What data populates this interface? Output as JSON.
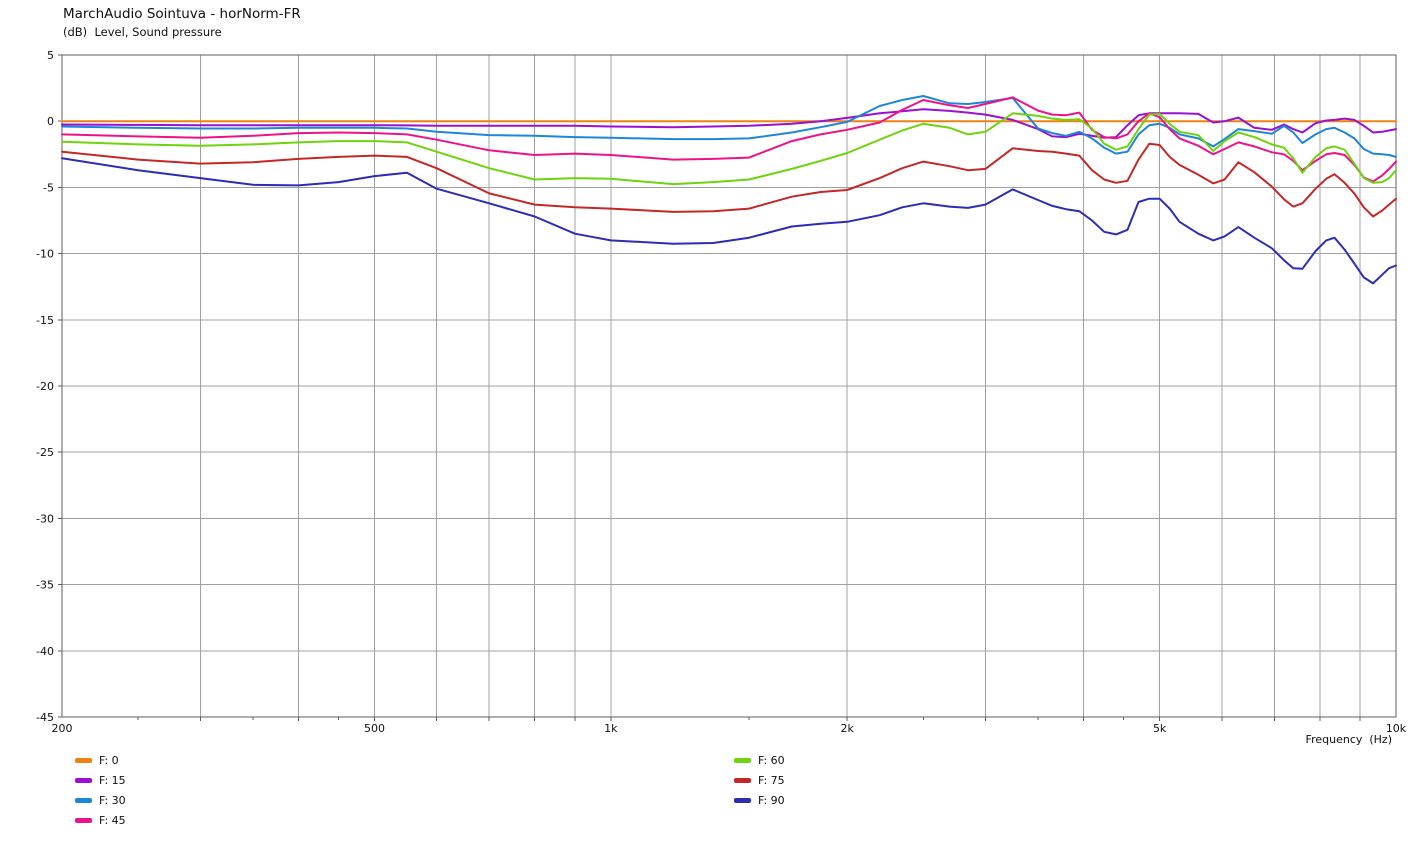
{
  "header": {
    "title": "MarchAudio Sointuva - horNorm-FR",
    "subtitle": "(dB)  Level, Sound pressure"
  },
  "chart_data": {
    "type": "line",
    "title": "MarchAudio Sointuva - horNorm-FR",
    "subtitle": "(dB)  Level, Sound pressure",
    "xlabel": "Frequency  (Hz)",
    "x_scale": "log",
    "xlim": [
      200,
      10000
    ],
    "ylim": [
      -45,
      5
    ],
    "grid": true,
    "legend_position": "bottom",
    "background": "#ffffff",
    "grid_color": "#a0a0a0",
    "frame_color": "#5f5f5f",
    "y_ticks": [
      5,
      0,
      -5,
      -10,
      -15,
      -20,
      -25,
      -30,
      -35,
      -40,
      -45
    ],
    "x_tick_labels": [
      {
        "f": 200,
        "label": "200"
      },
      {
        "f": 500,
        "label": "500"
      },
      {
        "f": 1000,
        "label": "1k"
      },
      {
        "f": 2000,
        "label": "2k"
      },
      {
        "f": 5000,
        "label": "5k"
      },
      {
        "f": 10000,
        "label": "10k"
      }
    ],
    "x_gridlines": [
      300,
      400,
      500,
      600,
      700,
      800,
      900,
      1000,
      2000,
      3000,
      4000,
      5000,
      6000,
      7000,
      8000,
      9000
    ],
    "x_minor_ticks": [
      250,
      350,
      450,
      1500,
      2500,
      3500,
      4500
    ],
    "frequencies": [
      200,
      250,
      300,
      350,
      400,
      450,
      500,
      550,
      600,
      700,
      800,
      900,
      1000,
      1200,
      1350,
      1500,
      1700,
      1850,
      2000,
      2200,
      2350,
      2500,
      2700,
      2850,
      3000,
      3250,
      3500,
      3650,
      3800,
      3950,
      4100,
      4250,
      4400,
      4550,
      4700,
      4850,
      5000,
      5150,
      5300,
      5600,
      5850,
      6050,
      6300,
      6600,
      6950,
      7200,
      7400,
      7600,
      7900,
      8150,
      8350,
      8600,
      8850,
      9100,
      9350,
      9600,
      9800,
      10000
    ],
    "series": [
      {
        "name": "F: 0",
        "color": "#EE8211",
        "values": [
          0,
          0,
          0,
          0,
          0,
          0,
          0,
          0,
          0,
          0,
          0,
          0,
          0,
          0,
          0,
          0,
          0,
          0,
          0,
          0,
          0,
          0,
          0,
          0,
          0,
          0,
          0,
          0,
          0,
          0,
          0,
          0,
          0,
          0,
          0,
          0,
          0,
          0,
          0,
          0,
          0,
          0,
          0,
          0,
          0,
          0,
          0,
          0,
          0,
          0,
          0,
          0,
          0,
          0,
          0,
          0,
          0,
          0
        ]
      },
      {
        "name": "F: 15",
        "color": "#9A10D2",
        "values": [
          -0.25,
          -0.28,
          -0.3,
          -0.3,
          -0.3,
          -0.3,
          -0.3,
          -0.32,
          -0.35,
          -0.35,
          -0.35,
          -0.35,
          -0.4,
          -0.45,
          -0.4,
          -0.35,
          -0.2,
          0,
          0.25,
          0.6,
          0.75,
          0.9,
          0.78,
          0.65,
          0.5,
          0.1,
          -0.6,
          -1.15,
          -1.2,
          -0.95,
          -1.1,
          -1.25,
          -1.2,
          -0.3,
          0.45,
          0.6,
          0.6,
          0.6,
          0.6,
          0.55,
          -0.1,
          0,
          0.27,
          -0.5,
          -0.65,
          -0.25,
          -0.6,
          -0.85,
          -0.15,
          0.05,
          0.1,
          0.2,
          0.1,
          -0.35,
          -0.85,
          -0.8,
          -0.7,
          -0.6
        ]
      },
      {
        "name": "F: 30",
        "color": "#1D86DB",
        "values": [
          -0.4,
          -0.5,
          -0.55,
          -0.55,
          -0.5,
          -0.5,
          -0.5,
          -0.55,
          -0.8,
          -1.05,
          -1.1,
          -1.2,
          -1.25,
          -1.35,
          -1.35,
          -1.3,
          -0.85,
          -0.45,
          -0.05,
          1.15,
          1.6,
          1.9,
          1.35,
          1.3,
          1.45,
          1.75,
          -0.55,
          -0.9,
          -1.1,
          -0.8,
          -1.3,
          -2.0,
          -2.45,
          -2.3,
          -1.0,
          -0.3,
          -0.2,
          -0.5,
          -1.0,
          -1.3,
          -1.9,
          -1.35,
          -0.6,
          -0.75,
          -0.95,
          -0.35,
          -0.85,
          -1.65,
          -1.0,
          -0.6,
          -0.5,
          -0.85,
          -1.3,
          -2.1,
          -2.45,
          -2.5,
          -2.55,
          -2.7
        ]
      },
      {
        "name": "F: 45",
        "color": "#EE1289",
        "values": [
          -1.0,
          -1.15,
          -1.25,
          -1.1,
          -0.9,
          -0.85,
          -0.9,
          -1.0,
          -1.4,
          -2.2,
          -2.55,
          -2.45,
          -2.55,
          -2.9,
          -2.85,
          -2.75,
          -1.5,
          -1.0,
          -0.65,
          -0.1,
          0.85,
          1.6,
          1.2,
          1.0,
          1.3,
          1.8,
          0.8,
          0.5,
          0.45,
          0.65,
          -0.65,
          -1.2,
          -1.3,
          -1.0,
          0,
          0.6,
          0.3,
          -0.6,
          -1.3,
          -1.85,
          -2.5,
          -2.1,
          -1.6,
          -1.9,
          -2.35,
          -2.5,
          -3.0,
          -3.7,
          -3.0,
          -2.5,
          -2.4,
          -2.55,
          -3.3,
          -4.25,
          -4.55,
          -4.1,
          -3.6,
          -3.05
        ]
      },
      {
        "name": "F: 60",
        "color": "#6FD30E",
        "values": [
          -1.55,
          -1.75,
          -1.85,
          -1.75,
          -1.6,
          -1.5,
          -1.5,
          -1.6,
          -2.3,
          -3.55,
          -4.4,
          -4.3,
          -4.35,
          -4.75,
          -4.6,
          -4.4,
          -3.6,
          -3.0,
          -2.4,
          -1.4,
          -0.7,
          -0.2,
          -0.5,
          -1.0,
          -0.8,
          0.6,
          0.4,
          0.2,
          0.1,
          0.15,
          -0.55,
          -1.7,
          -2.15,
          -1.9,
          -0.6,
          0.5,
          0.55,
          -0.2,
          -0.8,
          -1.05,
          -2.25,
          -1.5,
          -0.85,
          -1.2,
          -1.75,
          -2.0,
          -2.8,
          -3.9,
          -2.7,
          -2.05,
          -1.9,
          -2.15,
          -3.2,
          -4.3,
          -4.65,
          -4.6,
          -4.3,
          -3.7
        ]
      },
      {
        "name": "F: 75",
        "color": "#C52726",
        "values": [
          -2.3,
          -2.9,
          -3.2,
          -3.1,
          -2.85,
          -2.7,
          -2.6,
          -2.7,
          -3.55,
          -5.45,
          -6.3,
          -6.5,
          -6.6,
          -6.85,
          -6.8,
          -6.6,
          -5.7,
          -5.35,
          -5.2,
          -4.3,
          -3.55,
          -3.05,
          -3.4,
          -3.7,
          -3.6,
          -2.05,
          -2.25,
          -2.3,
          -2.45,
          -2.6,
          -3.7,
          -4.4,
          -4.65,
          -4.5,
          -2.9,
          -1.7,
          -1.8,
          -2.7,
          -3.3,
          -4.05,
          -4.7,
          -4.4,
          -3.1,
          -3.85,
          -4.95,
          -5.9,
          -6.45,
          -6.2,
          -5.1,
          -4.35,
          -4.0,
          -4.65,
          -5.45,
          -6.5,
          -7.2,
          -6.75,
          -6.3,
          -5.85
        ]
      },
      {
        "name": "F: 90",
        "color": "#2C2CB8",
        "values": [
          -2.8,
          -3.7,
          -4.3,
          -4.8,
          -4.85,
          -4.6,
          -4.15,
          -3.9,
          -5.1,
          -6.2,
          -7.2,
          -8.5,
          -9.0,
          -9.25,
          -9.2,
          -8.8,
          -7.95,
          -7.75,
          -7.6,
          -7.1,
          -6.5,
          -6.2,
          -6.45,
          -6.55,
          -6.3,
          -5.15,
          -5.95,
          -6.4,
          -6.65,
          -6.8,
          -7.5,
          -8.35,
          -8.55,
          -8.2,
          -6.1,
          -5.85,
          -5.85,
          -6.6,
          -7.6,
          -8.5,
          -9.0,
          -8.7,
          -8.0,
          -8.8,
          -9.6,
          -10.5,
          -11.1,
          -11.15,
          -9.8,
          -9.0,
          -8.8,
          -9.7,
          -10.75,
          -11.8,
          -12.25,
          -11.6,
          -11.1,
          -10.9
        ]
      }
    ]
  },
  "legend": {
    "left_column_labels": [
      "F: 0",
      "F: 15",
      "F: 30",
      "F: 45"
    ],
    "right_column_labels": [
      "F: 60",
      "F: 75",
      "F: 90"
    ]
  }
}
